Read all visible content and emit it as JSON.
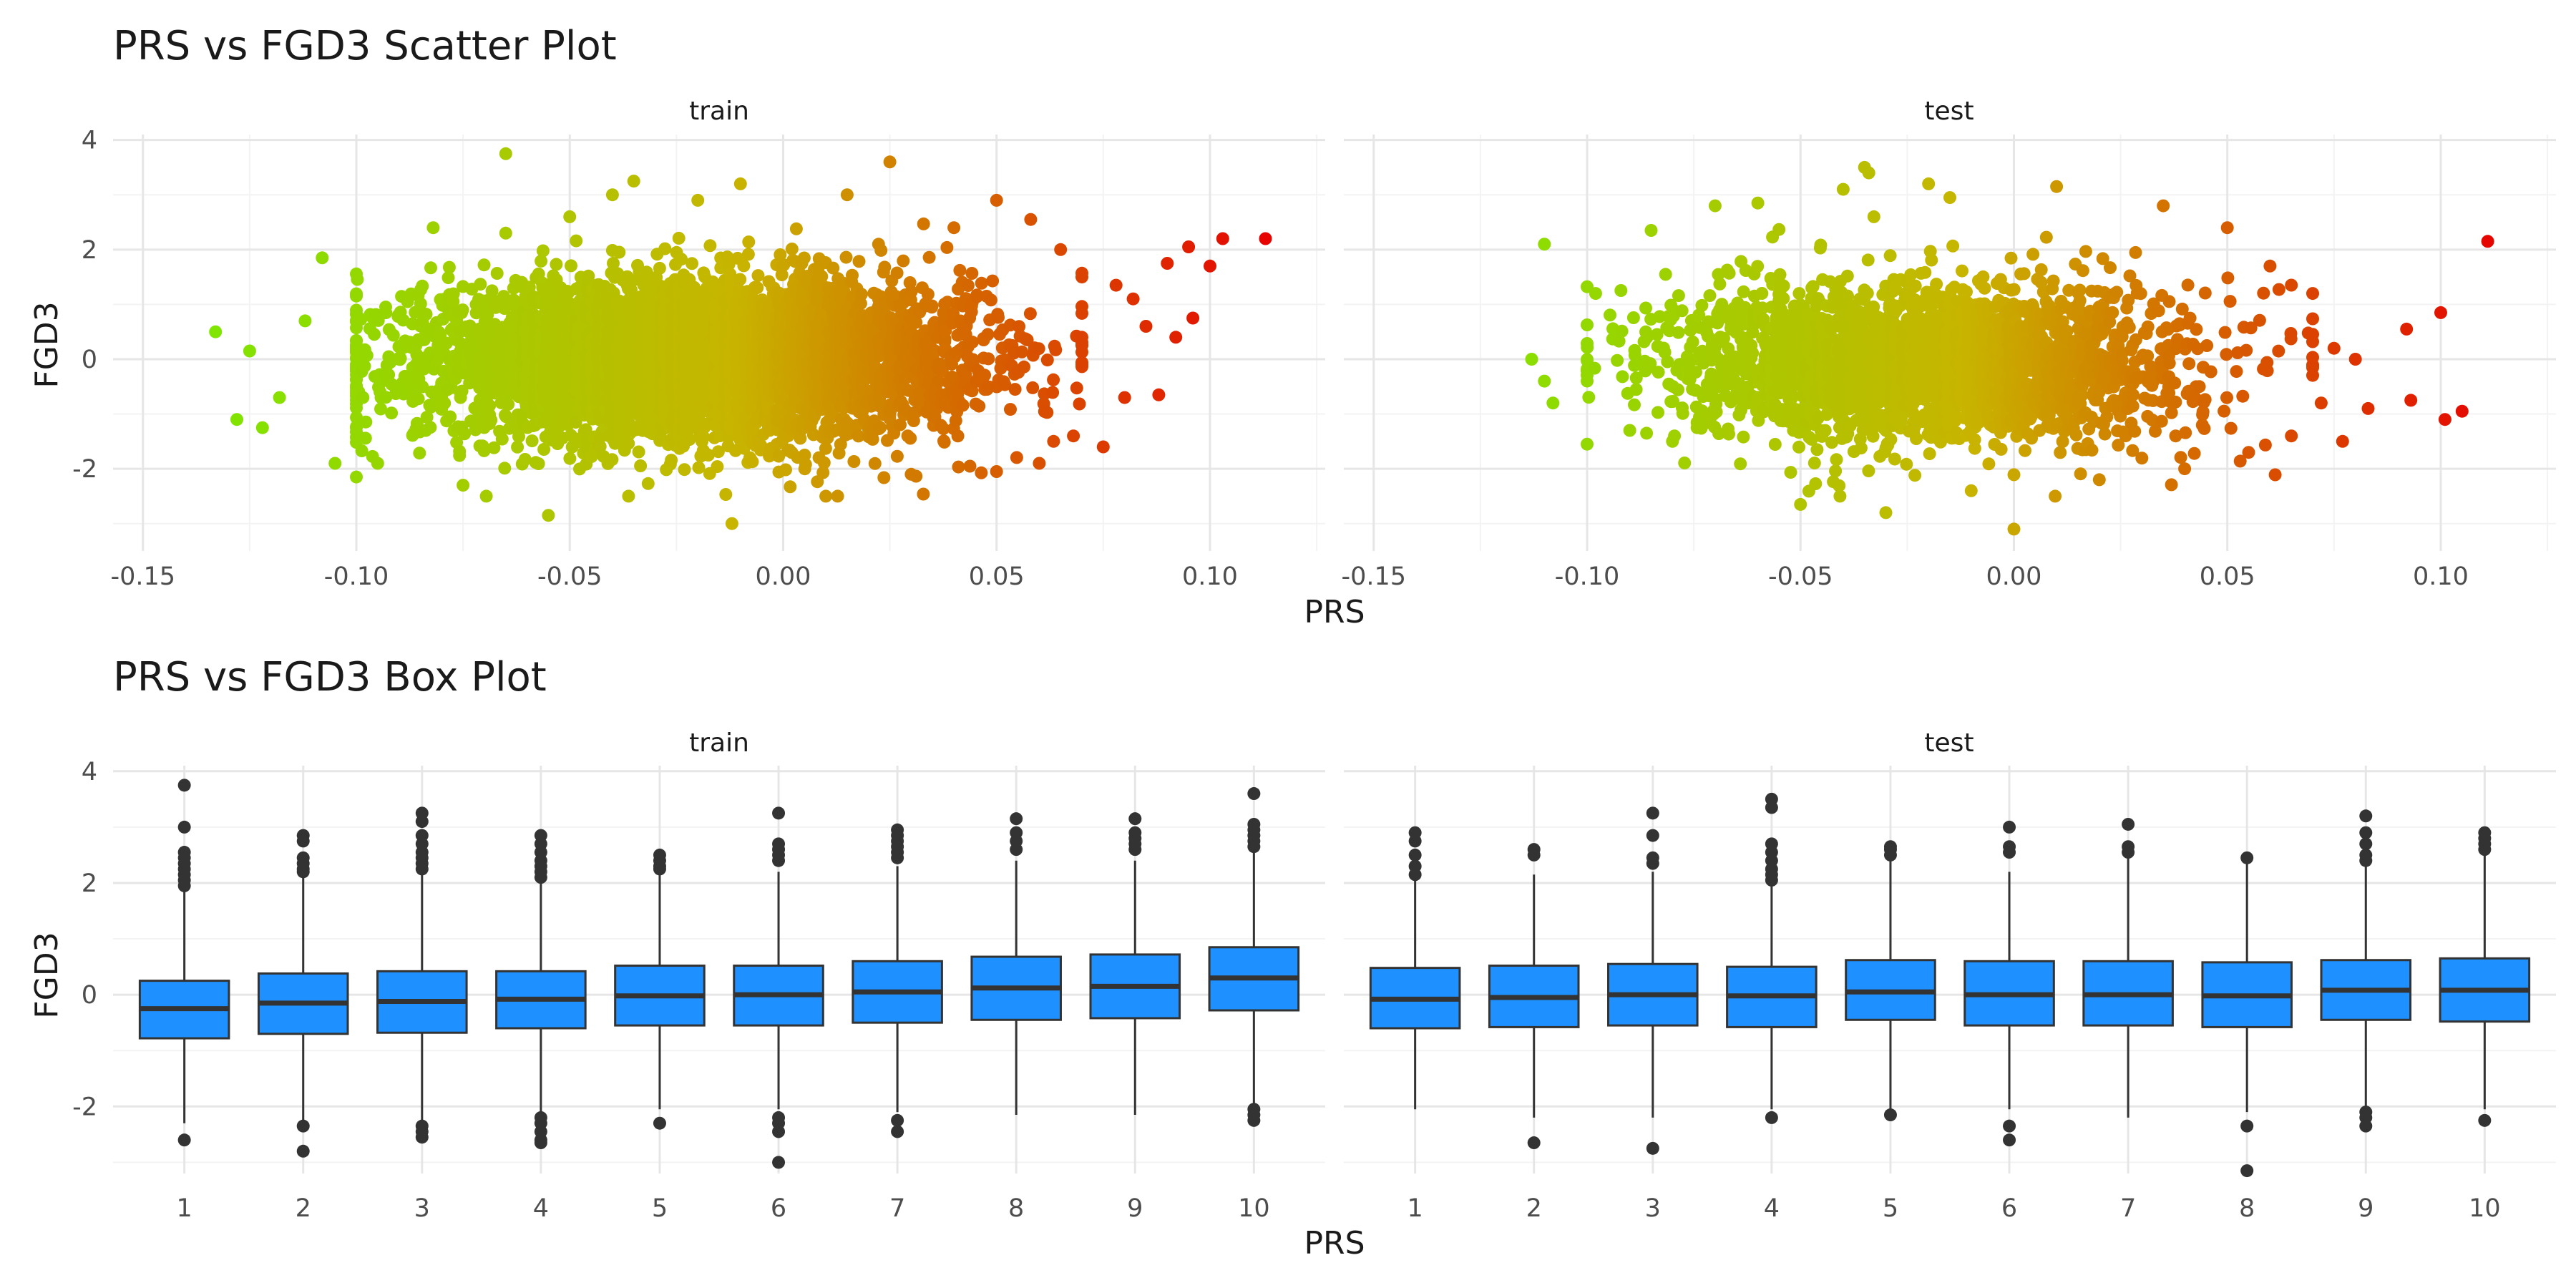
{
  "chart_data": [
    {
      "type": "scatter",
      "title": "PRS vs FGD3 Scatter Plot",
      "xlabel": "PRS",
      "ylabel": "FGD3",
      "xlim": [
        -0.157,
        0.127
      ],
      "ylim": [
        -3.5,
        4.1
      ],
      "x_ticks": [
        -0.15,
        -0.1,
        -0.05,
        0.0,
        0.05,
        0.1
      ],
      "x_tick_labels": [
        "-0.15",
        "-0.10",
        "-0.05",
        "0.00",
        "0.05",
        "0.10"
      ],
      "y_ticks": [
        -2,
        0,
        2,
        4
      ],
      "y_tick_labels": [
        "-2",
        "0",
        "2",
        "4"
      ],
      "grid": true,
      "color_scale": {
        "low": "#7fe600",
        "mid": "#c8b400",
        "high": "#e60000"
      },
      "facets": [
        {
          "label": "train",
          "cloud": {
            "x_center": -0.02,
            "x_sd": 0.032,
            "y_center": 0.0,
            "y_sd": 0.72,
            "shown_points": 5000
          },
          "points": [
            {
              "x": -0.133,
              "y": 0.5
            },
            {
              "x": -0.125,
              "y": 0.15
            },
            {
              "x": -0.128,
              "y": -1.1
            },
            {
              "x": -0.122,
              "y": -1.25
            },
            {
              "x": -0.118,
              "y": -0.7
            },
            {
              "x": -0.108,
              "y": 1.85
            },
            {
              "x": -0.112,
              "y": 0.7
            },
            {
              "x": -0.105,
              "y": -1.9
            },
            {
              "x": -0.1,
              "y": -2.15
            },
            {
              "x": -0.095,
              "y": -1.9
            },
            {
              "x": -0.088,
              "y": 1.05
            },
            {
              "x": -0.082,
              "y": 2.4
            },
            {
              "x": -0.075,
              "y": -2.3
            },
            {
              "x": -0.065,
              "y": 2.3
            },
            {
              "x": -0.065,
              "y": 3.75
            },
            {
              "x": -0.055,
              "y": -2.85
            },
            {
              "x": -0.05,
              "y": 2.6
            },
            {
              "x": -0.04,
              "y": 3.0
            },
            {
              "x": -0.035,
              "y": 3.25
            },
            {
              "x": -0.02,
              "y": 2.9
            },
            {
              "x": -0.012,
              "y": -3.0
            },
            {
              "x": -0.01,
              "y": 3.2
            },
            {
              "x": 0.01,
              "y": -2.5
            },
            {
              "x": 0.015,
              "y": 3.0
            },
            {
              "x": 0.025,
              "y": 3.6
            },
            {
              "x": 0.03,
              "y": -2.1
            },
            {
              "x": 0.04,
              "y": 2.4
            },
            {
              "x": 0.05,
              "y": 2.9
            },
            {
              "x": 0.05,
              "y": -2.05
            },
            {
              "x": 0.058,
              "y": 2.55
            },
            {
              "x": 0.06,
              "y": -1.9
            },
            {
              "x": 0.065,
              "y": 2.0
            },
            {
              "x": 0.068,
              "y": -1.4
            },
            {
              "x": 0.07,
              "y": 1.5
            },
            {
              "x": 0.075,
              "y": -1.6
            },
            {
              "x": 0.078,
              "y": 1.35
            },
            {
              "x": 0.08,
              "y": -0.7
            },
            {
              "x": 0.082,
              "y": 1.1
            },
            {
              "x": 0.085,
              "y": 0.6
            },
            {
              "x": 0.088,
              "y": -0.65
            },
            {
              "x": 0.09,
              "y": 1.75
            },
            {
              "x": 0.092,
              "y": 0.4
            },
            {
              "x": 0.095,
              "y": 2.05
            },
            {
              "x": 0.096,
              "y": 0.75
            },
            {
              "x": 0.1,
              "y": 1.7
            },
            {
              "x": 0.103,
              "y": 2.2
            },
            {
              "x": 0.113,
              "y": 2.2
            }
          ]
        },
        {
          "label": "test",
          "cloud": {
            "x_center": -0.02,
            "x_sd": 0.03,
            "y_center": -0.05,
            "y_sd": 0.72,
            "shown_points": 2500
          },
          "points": [
            {
              "x": -0.11,
              "y": 2.1
            },
            {
              "x": -0.113,
              "y": 0.0
            },
            {
              "x": -0.11,
              "y": -0.4
            },
            {
              "x": -0.108,
              "y": -0.8
            },
            {
              "x": -0.1,
              "y": -1.55
            },
            {
              "x": -0.098,
              "y": 1.2
            },
            {
              "x": -0.09,
              "y": -1.3
            },
            {
              "x": -0.085,
              "y": 2.35
            },
            {
              "x": -0.08,
              "y": -1.5
            },
            {
              "x": -0.07,
              "y": 2.8
            },
            {
              "x": -0.06,
              "y": 2.85
            },
            {
              "x": -0.05,
              "y": -2.65
            },
            {
              "x": -0.04,
              "y": 3.1
            },
            {
              "x": -0.035,
              "y": 3.5
            },
            {
              "x": -0.034,
              "y": 3.4
            },
            {
              "x": -0.03,
              "y": -2.8
            },
            {
              "x": -0.02,
              "y": 3.2
            },
            {
              "x": -0.015,
              "y": 2.95
            },
            {
              "x": -0.01,
              "y": -2.4
            },
            {
              "x": 0.0,
              "y": -3.1
            },
            {
              "x": 0.01,
              "y": 3.15
            },
            {
              "x": 0.02,
              "y": -2.2
            },
            {
              "x": 0.035,
              "y": 2.8
            },
            {
              "x": 0.04,
              "y": -2.0
            },
            {
              "x": 0.05,
              "y": 2.4
            },
            {
              "x": 0.055,
              "y": -1.7
            },
            {
              "x": 0.06,
              "y": 1.7
            },
            {
              "x": 0.065,
              "y": -1.4
            },
            {
              "x": 0.07,
              "y": 1.2
            },
            {
              "x": 0.072,
              "y": -0.8
            },
            {
              "x": 0.075,
              "y": 0.2
            },
            {
              "x": 0.077,
              "y": -1.5
            },
            {
              "x": 0.08,
              "y": 0.0
            },
            {
              "x": 0.083,
              "y": -0.9
            },
            {
              "x": 0.092,
              "y": 0.55
            },
            {
              "x": 0.093,
              "y": -0.75
            },
            {
              "x": 0.1,
              "y": 0.85
            },
            {
              "x": 0.101,
              "y": -1.1
            },
            {
              "x": 0.105,
              "y": -0.95
            },
            {
              "x": 0.111,
              "y": 2.15
            }
          ]
        }
      ]
    },
    {
      "type": "box",
      "title": "PRS vs FGD3 Box Plot",
      "xlabel": "PRS",
      "ylabel": "FGD3",
      "ylim": [
        -3.2,
        4.1
      ],
      "categories": [
        "1",
        "2",
        "3",
        "4",
        "5",
        "6",
        "7",
        "8",
        "9",
        "10"
      ],
      "y_ticks": [
        -2,
        0,
        2,
        4
      ],
      "y_tick_labels": [
        "-2",
        "0",
        "2",
        "4"
      ],
      "grid": true,
      "box_color": "#1e90ff",
      "facets": [
        {
          "label": "train",
          "boxes": [
            {
              "q1": -0.78,
              "median": -0.25,
              "q3": 0.25,
              "lo": -2.3,
              "hi": 1.85,
              "outliers": [
                3.75,
                3.0,
                2.55,
                2.45,
                2.35,
                2.25,
                2.15,
                2.05,
                1.95,
                -2.6
              ]
            },
            {
              "q1": -0.7,
              "median": -0.15,
              "q3": 0.38,
              "lo": -2.25,
              "hi": 2.1,
              "outliers": [
                2.85,
                2.75,
                2.45,
                2.35,
                2.25,
                2.2,
                -2.35,
                -2.8
              ]
            },
            {
              "q1": -0.68,
              "median": -0.12,
              "q3": 0.42,
              "lo": -2.25,
              "hi": 2.15,
              "outliers": [
                3.25,
                3.1,
                2.85,
                2.7,
                2.55,
                2.45,
                2.35,
                2.25,
                -2.35,
                -2.45,
                -2.55
              ]
            },
            {
              "q1": -0.6,
              "median": -0.08,
              "q3": 0.42,
              "lo": -2.15,
              "hi": 2.0,
              "outliers": [
                2.85,
                2.7,
                2.55,
                2.4,
                2.3,
                2.2,
                2.1,
                -2.2,
                -2.3,
                -2.45,
                -2.6,
                -2.65
              ]
            },
            {
              "q1": -0.55,
              "median": -0.02,
              "q3": 0.52,
              "lo": -2.05,
              "hi": 2.15,
              "outliers": [
                2.5,
                2.4,
                2.3,
                2.25,
                -2.3
              ]
            },
            {
              "q1": -0.55,
              "median": 0.0,
              "q3": 0.52,
              "lo": -2.05,
              "hi": 2.2,
              "outliers": [
                3.25,
                2.7,
                2.6,
                2.5,
                2.4,
                -2.2,
                -2.3,
                -2.45,
                -3.0
              ]
            },
            {
              "q1": -0.5,
              "median": 0.05,
              "q3": 0.6,
              "lo": -2.1,
              "hi": 2.3,
              "outliers": [
                2.95,
                2.85,
                2.75,
                2.65,
                2.55,
                2.45,
                -2.25,
                -2.45
              ]
            },
            {
              "q1": -0.45,
              "median": 0.12,
              "q3": 0.68,
              "lo": -2.15,
              "hi": 2.4,
              "outliers": [
                3.15,
                2.9,
                2.75,
                2.6
              ]
            },
            {
              "q1": -0.42,
              "median": 0.15,
              "q3": 0.72,
              "lo": -2.15,
              "hi": 2.4,
              "outliers": [
                3.15,
                2.9,
                2.8,
                2.7,
                2.6
              ]
            },
            {
              "q1": -0.28,
              "median": 0.3,
              "q3": 0.85,
              "lo": -1.95,
              "hi": 2.55,
              "outliers": [
                3.6,
                3.05,
                2.95,
                2.85,
                2.75,
                2.65,
                -2.05,
                -2.15,
                -2.25
              ]
            }
          ]
        },
        {
          "label": "test",
          "boxes": [
            {
              "q1": -0.6,
              "median": -0.08,
              "q3": 0.48,
              "lo": -2.05,
              "hi": 2.05,
              "outliers": [
                2.9,
                2.75,
                2.5,
                2.3,
                2.15
              ]
            },
            {
              "q1": -0.58,
              "median": -0.05,
              "q3": 0.52,
              "lo": -2.2,
              "hi": 2.15,
              "outliers": [
                2.6,
                2.5,
                -2.65
              ]
            },
            {
              "q1": -0.55,
              "median": 0.0,
              "q3": 0.55,
              "lo": -2.2,
              "hi": 2.2,
              "outliers": [
                3.25,
                2.85,
                2.45,
                2.35,
                -2.75
              ]
            },
            {
              "q1": -0.58,
              "median": -0.02,
              "q3": 0.5,
              "lo": -2.05,
              "hi": 2.0,
              "outliers": [
                3.5,
                3.35,
                2.7,
                2.55,
                2.4,
                2.25,
                2.15,
                2.05,
                -2.2
              ]
            },
            {
              "q1": -0.45,
              "median": 0.05,
              "q3": 0.62,
              "lo": -2.05,
              "hi": 2.5,
              "outliers": [
                2.65,
                2.6,
                2.5,
                -2.15
              ]
            },
            {
              "q1": -0.55,
              "median": 0.0,
              "q3": 0.6,
              "lo": -2.05,
              "hi": 2.2,
              "outliers": [
                3.0,
                2.65,
                2.55,
                -2.35,
                -2.6
              ]
            },
            {
              "q1": -0.55,
              "median": 0.0,
              "q3": 0.6,
              "lo": -2.2,
              "hi": 2.45,
              "outliers": [
                3.05,
                2.65,
                2.55
              ]
            },
            {
              "q1": -0.58,
              "median": -0.02,
              "q3": 0.58,
              "lo": -2.1,
              "hi": 2.45,
              "outliers": [
                2.45,
                -2.35,
                -3.15
              ]
            },
            {
              "q1": -0.45,
              "median": 0.08,
              "q3": 0.62,
              "lo": -2.05,
              "hi": 2.3,
              "outliers": [
                3.2,
                2.9,
                2.7,
                2.5,
                2.4,
                -2.1,
                -2.2,
                -2.35
              ]
            },
            {
              "q1": -0.48,
              "median": 0.08,
              "q3": 0.65,
              "lo": -2.05,
              "hi": 2.5,
              "outliers": [
                2.9,
                2.8,
                2.7,
                2.6,
                -2.25
              ]
            }
          ]
        }
      ]
    }
  ]
}
